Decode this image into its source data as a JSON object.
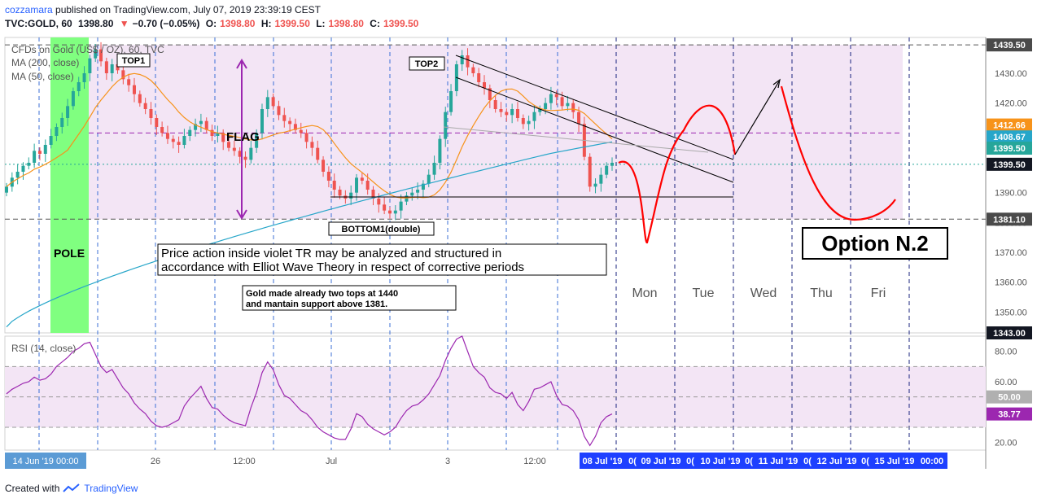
{
  "header": {
    "user": "cozzamara",
    "published": " published on TradingView.com, July 07, 2019 23:39:19 CEST",
    "symbol": "TVC:GOLD, 60",
    "last": "1398.80",
    "change": "−0.70 (−0.05%)",
    "open_label": "O:",
    "open": "1398.80",
    "high_label": "H:",
    "high": "1399.50",
    "low_label": "L:",
    "low": "1398.80",
    "close_label": "C:",
    "close": "1399.50"
  },
  "footer": {
    "created_with": "Created with",
    "brand": "TradingView"
  },
  "colors": {
    "violet_zone": "#f3e5f5",
    "pole": "#80ff80",
    "ma200": "#26a6c9",
    "ma50": "#f7931a",
    "rsi": "#9c27b0",
    "projection": "#ff0000",
    "axis_blue": "#1e40ff"
  },
  "chart_data": [
    {
      "type": "candlestick",
      "title": "CFDs on Gold (US$ / OZ), 60, TVC",
      "legend": [
        "MA (200, close)",
        "MA (50, close)"
      ],
      "ylim": [
        1343,
        1442
      ],
      "y_ticks": [
        1350,
        1360,
        1370,
        1380,
        1390,
        1400,
        1410,
        1420,
        1430
      ],
      "y_tick_labels": [
        "1350.00",
        "1360.00",
        "1370.00",
        "1380.00",
        "1390.00",
        "1400.00",
        "1410.00",
        "1420.00",
        "1430.00"
      ],
      "price_tags": [
        {
          "label": "1439.50",
          "value": 1439.5,
          "color": "#4a4a4a"
        },
        {
          "label": "1412.66",
          "value": 1412.66,
          "color": "#f7931a"
        },
        {
          "label": "1408.67",
          "value": 1408.67,
          "color": "#26a6c9"
        },
        {
          "label": "1399.50",
          "value": 1404.9,
          "color": "#26a69a"
        },
        {
          "label": "1399.50",
          "value": 1399.5,
          "color": "#131722"
        },
        {
          "label": "1381.10",
          "value": 1381.1,
          "color": "#4a4a4a"
        },
        {
          "label": "1343.00",
          "value": 1343.0,
          "color": "#131722"
        }
      ],
      "x_labels": [
        "14 Jun '19   00:00",
        "26",
        "12:00",
        "Jul",
        "3",
        "12:00",
        "08 Jul '19",
        "0(",
        "09 Jul '19",
        "0(",
        "10 Jul '19",
        "0(",
        "11 Jul '19",
        "0(",
        "12 Jul '19",
        "0(",
        "15 Jul '19",
        "00:00"
      ],
      "days": [
        "Mon",
        "Tue",
        "Wed",
        "Thu",
        "Fri"
      ],
      "annotations": {
        "top1": "TOP1",
        "top2": "TOP2",
        "flag": "FLAG",
        "pole": "POLE",
        "bottom": "BOTTOM1(double)",
        "note1_line1": "Price action inside violet TR may be analyzed and structured in",
        "note1_line2": "accordance with Elliot Wave Theory in respect of corrective periods",
        "note2_line1": "Gold made already two tops at 1440",
        "note2_line2": "and  mantain support above 1381.",
        "option": "Option N.2"
      },
      "closes": [
        1392,
        1395,
        1397,
        1399,
        1400,
        1404,
        1403,
        1406,
        1409,
        1412,
        1415,
        1419,
        1424,
        1427,
        1430,
        1435,
        1438,
        1434,
        1430,
        1433,
        1431,
        1428,
        1426,
        1423,
        1420,
        1418,
        1415,
        1412,
        1410,
        1408,
        1407,
        1406,
        1409,
        1411,
        1413,
        1414,
        1411,
        1409,
        1410,
        1407,
        1405,
        1404,
        1402,
        1401,
        1405,
        1410,
        1418,
        1422,
        1419,
        1416,
        1414,
        1413,
        1411,
        1410,
        1407,
        1405,
        1401,
        1397,
        1394,
        1391,
        1389,
        1388,
        1390,
        1395,
        1394,
        1391,
        1388,
        1386,
        1384,
        1383,
        1384,
        1387,
        1389,
        1390,
        1391,
        1393,
        1396,
        1400,
        1408,
        1417,
        1424,
        1433,
        1436,
        1432,
        1430,
        1427,
        1425,
        1421,
        1418,
        1417,
        1416,
        1418,
        1415,
        1413,
        1414,
        1417,
        1418,
        1420,
        1423,
        1422,
        1419,
        1420,
        1417,
        1413,
        1402,
        1392,
        1393,
        1396,
        1399,
        1400
      ]
    },
    {
      "type": "line",
      "title": "RSI (14, close)",
      "ylim": [
        15,
        90
      ],
      "y_ticks": [
        20,
        30,
        40,
        60,
        70,
        80
      ],
      "y_tick_labels": [
        "20.00",
        "",
        "",
        "60.00",
        "",
        "80.00"
      ],
      "price_tags": [
        {
          "label": "50.00",
          "value": 50,
          "color": "#b0b0b0"
        },
        {
          "label": "38.77",
          "value": 38.77,
          "color": "#9c27b0"
        }
      ],
      "values": [
        52,
        55,
        57,
        59,
        60,
        63,
        61,
        62,
        65,
        70,
        73,
        76,
        80,
        82,
        85,
        86,
        78,
        70,
        66,
        68,
        62,
        56,
        52,
        46,
        42,
        39,
        34,
        31,
        30,
        31,
        33,
        35,
        44,
        49,
        53,
        57,
        49,
        43,
        42,
        38,
        35,
        33,
        32,
        31,
        43,
        53,
        66,
        73,
        68,
        58,
        51,
        49,
        45,
        41,
        39,
        35,
        30,
        27,
        25,
        23,
        22,
        22,
        29,
        39,
        37,
        32,
        29,
        27,
        25,
        27,
        30,
        36,
        41,
        44,
        45,
        48,
        52,
        58,
        64,
        74,
        82,
        88,
        90,
        80,
        70,
        66,
        63,
        56,
        53,
        52,
        49,
        53,
        45,
        41,
        47,
        55,
        56,
        58,
        60,
        51,
        45,
        44,
        41,
        35,
        24,
        18,
        24,
        33,
        37,
        38.77
      ]
    }
  ]
}
